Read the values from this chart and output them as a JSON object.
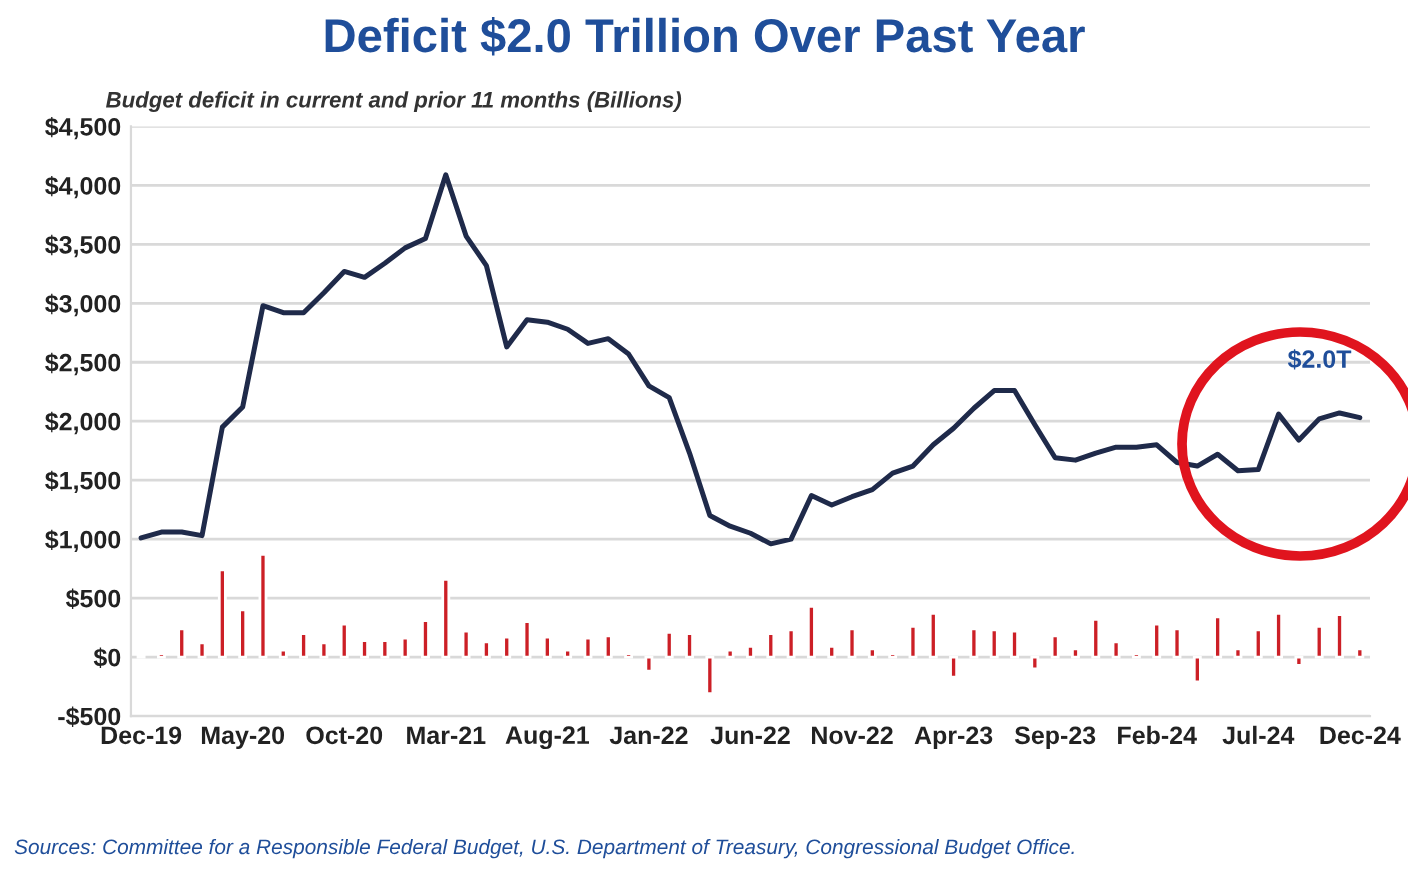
{
  "chart_data": {
    "type": "line",
    "title": "Deficit $2.0 Trillion Over Past Year",
    "subtitle": "Budget deficit in current and prior 11 months (Billions)",
    "categories": [
      "Dec-19",
      null,
      null,
      null,
      null,
      "May-20",
      null,
      null,
      null,
      null,
      "Oct-20",
      null,
      null,
      null,
      null,
      "Mar-21",
      null,
      null,
      null,
      null,
      "Aug-21",
      null,
      null,
      null,
      null,
      "Jan-22",
      null,
      null,
      null,
      null,
      "Jun-22",
      null,
      null,
      null,
      null,
      "Nov-22",
      null,
      null,
      null,
      null,
      "Apr-23",
      null,
      null,
      null,
      null,
      "Sep-23",
      null,
      null,
      null,
      null,
      "Feb-24",
      null,
      null,
      null,
      null,
      "Jul-24",
      null,
      null,
      null,
      null,
      "Dec-24"
    ],
    "series": [
      {
        "type": "bar",
        "color": "#cc1f26",
        "values": [
          10,
          30,
          240,
          120,
          740,
          400,
          870,
          60,
          200,
          120,
          280,
          140,
          140,
          160,
          310,
          660,
          220,
          130,
          170,
          300,
          170,
          60,
          160,
          180,
          30,
          -120,
          210,
          200,
          -310,
          60,
          90,
          200,
          230,
          430,
          90,
          240,
          70,
          30,
          260,
          370,
          -170,
          240,
          230,
          220,
          -100,
          180,
          70,
          320,
          130,
          30,
          280,
          240,
          -210,
          340,
          70,
          230,
          370,
          -70,
          260,
          360,
          70
        ]
      },
      {
        "color": "#1f2a4a",
        "values": [
          1010,
          1060,
          1060,
          1030,
          1950,
          2120,
          2980,
          2920,
          2920,
          3090,
          3270,
          3220,
          3340,
          3470,
          3550,
          4090,
          3570,
          3320,
          2630,
          2860,
          2840,
          2780,
          2660,
          2700,
          2570,
          2300,
          2200,
          1730,
          1200,
          1110,
          1050,
          960,
          1000,
          1370,
          1290,
          1360,
          1420,
          1560,
          1620,
          1800,
          1940,
          2110,
          2260,
          2260,
          1970,
          1690,
          1670,
          1730,
          1780,
          1780,
          1800,
          1650,
          1620,
          1720,
          1580,
          1590,
          2060,
          1840,
          2020,
          2070,
          2030
        ]
      }
    ],
    "ylim": [
      -500,
      4500
    ],
    "yticks": [
      {
        "value": -500,
        "label": "-$500"
      },
      {
        "value": 0,
        "label": "$0"
      },
      {
        "value": 500,
        "label": "$500"
      },
      {
        "value": 1000,
        "label": "$1,000"
      },
      {
        "value": 1500,
        "label": "$1,500"
      },
      {
        "value": 2000,
        "label": "$2,000"
      },
      {
        "value": 2500,
        "label": "$2,500"
      },
      {
        "value": 3000,
        "label": "$3,000"
      },
      {
        "value": 3500,
        "label": "$3,500"
      },
      {
        "value": 4000,
        "label": "$4,000"
      },
      {
        "value": 4500,
        "label": "$4,500"
      }
    ],
    "grid": "y",
    "marker": "none",
    "line_style": "solid",
    "annotations": [
      {
        "text": "$2.0T",
        "x": "Dec-24",
        "y": 2030
      },
      "Sources: Committee for a Responsible Federal Budget, U.S. Department of Treasury, Congressional Budget Office."
    ]
  }
}
